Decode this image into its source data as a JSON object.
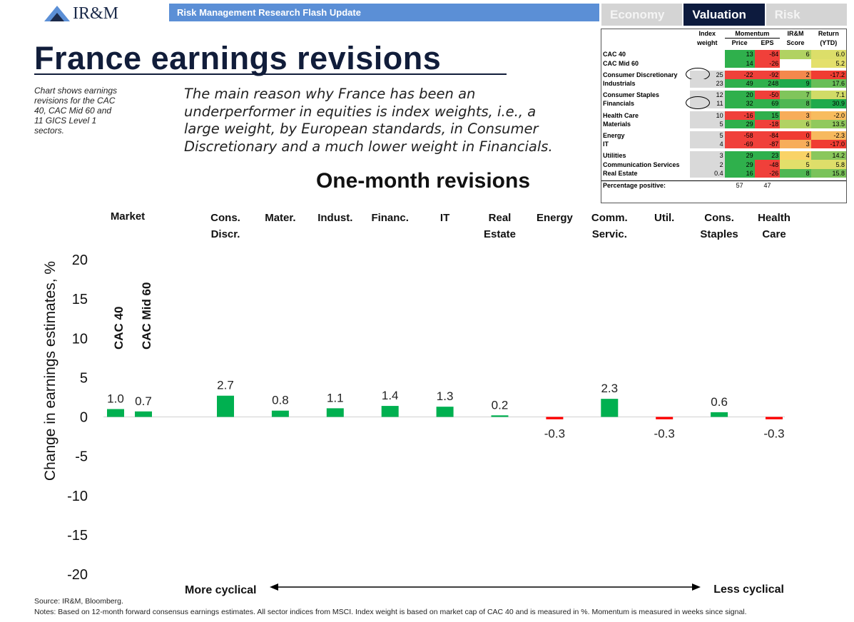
{
  "header": {
    "logo": "IR&M",
    "banner": "Risk Management Research Flash Update",
    "tabs": [
      "Economy",
      "Valuation",
      "Risk"
    ],
    "active_tab": 1
  },
  "title": "France earnings revisions",
  "side_note": [
    "Chart shows earnings",
    "revisions for the CAC",
    "40, CAC Mid 60 and",
    "11 GICS Level 1",
    "sectors."
  ],
  "main_text": [
    "The main reason why France has been an",
    "underperformer in equities is index weights, i.e., a",
    "large weight, by European standards, in Consumer",
    "Discretionary and a much lower weight in Financials."
  ],
  "table": {
    "head1": [
      "Index",
      "Momentum",
      "IR&M",
      "Return"
    ],
    "head2": [
      "weight",
      "Price",
      "EPS",
      "Score",
      "(YTD)"
    ],
    "groups": [
      [
        [
          "CAC 40",
          null,
          "13",
          "-84",
          "6",
          "6.0"
        ],
        [
          "CAC Mid 60",
          null,
          "14",
          "-26",
          null,
          "5.2"
        ]
      ],
      [
        [
          "Consumer Discretionary",
          "25",
          "-22",
          "-92",
          "2",
          "-17.2"
        ],
        [
          "Industrials",
          "23",
          "49",
          "248",
          "9",
          "17.6"
        ]
      ],
      [
        [
          "Consumer Staples",
          "12",
          "20",
          "-50",
          "7",
          "7.1"
        ],
        [
          "Financials",
          "11",
          "32",
          "69",
          "8",
          "30.9"
        ]
      ],
      [
        [
          "Health Care",
          "10",
          "-16",
          "15",
          "3",
          "-2.0"
        ],
        [
          "Materials",
          "5",
          "29",
          "-18",
          "6",
          "13.5"
        ]
      ],
      [
        [
          "Energy",
          "5",
          "-58",
          "-84",
          "0",
          "-2.3"
        ],
        [
          "IT",
          "4",
          "-69",
          "-87",
          "3",
          "-17.0"
        ]
      ],
      [
        [
          "Utilities",
          "3",
          "29",
          "23",
          "4",
          "14.2"
        ],
        [
          "Communication Services",
          "2",
          "29",
          "-48",
          "5",
          "5.8"
        ],
        [
          "Real Estate",
          "0.4",
          "16",
          "-26",
          "8",
          "15.8"
        ]
      ]
    ],
    "footer": [
      "Percentage positive:",
      "57",
      "47"
    ]
  },
  "chart_data": {
    "type": "bar",
    "title": "One-month revisions",
    "group_label": "Market",
    "categories": [
      "CAC 40",
      "CAC Mid 60",
      "Cons.\nDiscr.",
      "Mater.",
      "Indust.",
      "Financ.",
      "IT",
      "Real\nEstate",
      "Energy",
      "Comm.\nServic.",
      "Util.",
      "Cons.\nStaples",
      "Health\nCare"
    ],
    "values": [
      1.0,
      0.7,
      2.7,
      0.8,
      1.1,
      1.4,
      1.3,
      0.2,
      -0.3,
      2.3,
      -0.3,
      0.6,
      -0.3
    ],
    "value_labels": [
      "1.0",
      "0.7",
      "2.7",
      "0.8",
      "1.1",
      "1.4",
      "1.3",
      "0.2",
      "-0.3",
      "2.3",
      "-0.3",
      "0.6",
      "-0.3"
    ],
    "colors": [
      "#00b050",
      "#00b050",
      "#00b050",
      "#00b050",
      "#00b050",
      "#00b050",
      "#00b050",
      "#00b050",
      "#ff0000",
      "#00b050",
      "#ff0000",
      "#00b050",
      "#ff0000"
    ],
    "ylabel": "Change in earnings estimates, %",
    "ylim": [
      -20,
      20
    ],
    "yticks": [
      -20,
      -15,
      -10,
      -5,
      0,
      5,
      10,
      15,
      20
    ],
    "grid": false,
    "annotations": [
      "More cyclical",
      "Less cyclical"
    ],
    "source": "Source: IR&M, Bloomberg.",
    "notes": "Notes: Based on 12-month forward consensus earnings estimates. All sector indices from MSCI. Index weight is based on market cap of CAC 40 and is measured in %. Momentum is measured in weeks since signal."
  }
}
